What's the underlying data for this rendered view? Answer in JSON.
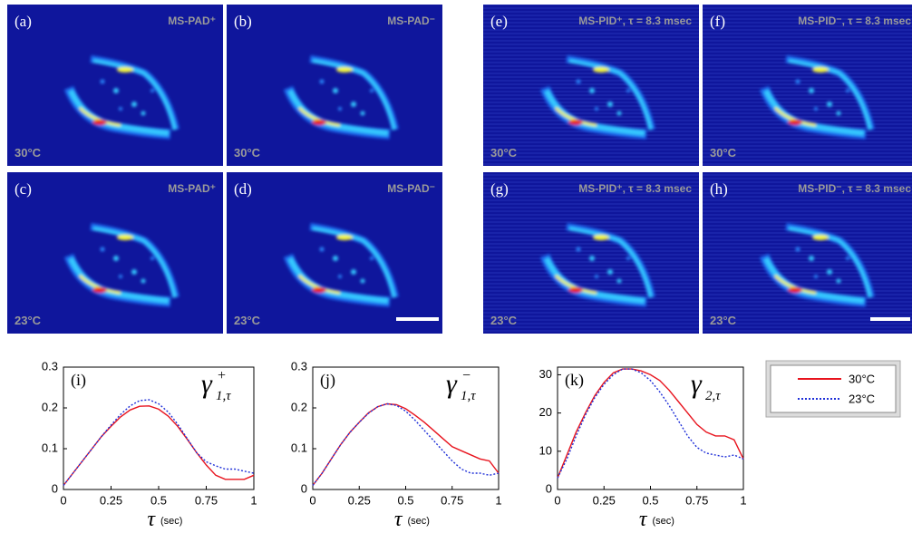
{
  "panels": [
    {
      "label": "(a)",
      "title": "MS-PAD⁺",
      "temperature": "30°C"
    },
    {
      "label": "(b)",
      "title": "MS-PAD⁻",
      "temperature": "30°C"
    },
    {
      "label": "(c)",
      "title": "MS-PAD⁺",
      "temperature": "23°C"
    },
    {
      "label": "(d)",
      "title": "MS-PAD⁻",
      "temperature": "23°C"
    },
    {
      "label": "(e)",
      "title": "MS-PID⁺, τ = 8.3 msec",
      "temperature": "30°C"
    },
    {
      "label": "(f)",
      "title": "MS-PID⁻, τ = 8.3 msec",
      "temperature": "30°C"
    },
    {
      "label": "(g)",
      "title": "MS-PID⁺, τ = 8.3 msec",
      "temperature": "23°C"
    },
    {
      "label": "(h)",
      "title": "MS-PID⁻, τ = 8.3 msec",
      "temperature": "23°C"
    }
  ],
  "legend": {
    "entries": [
      {
        "name": "30°C",
        "color": "#e8141e",
        "dotted": false
      },
      {
        "name": "23°C",
        "color": "#1f2fd8",
        "dotted": true
      }
    ]
  },
  "chart_data": [
    {
      "type": "line",
      "panel_label": "(i)",
      "symbol": "γ",
      "subscript": "1,τ",
      "superscript": "+",
      "x_label": "τ",
      "x_unit": "(sec)",
      "x": [
        0,
        0.05,
        0.1,
        0.15,
        0.2,
        0.25,
        0.3,
        0.35,
        0.4,
        0.45,
        0.5,
        0.55,
        0.6,
        0.65,
        0.7,
        0.75,
        0.8,
        0.85,
        0.9,
        0.95,
        1
      ],
      "xlim": [
        0,
        1
      ],
      "xticks": [
        0,
        0.25,
        0.5,
        0.75,
        1
      ],
      "ylim": [
        0,
        0.3
      ],
      "yticks": [
        0,
        0.1,
        0.2,
        0.3
      ],
      "series": [
        {
          "color": "#e8141e",
          "dotted": false,
          "values": [
            0.01,
            0.04,
            0.07,
            0.1,
            0.13,
            0.155,
            0.178,
            0.195,
            0.204,
            0.205,
            0.197,
            0.18,
            0.155,
            0.123,
            0.09,
            0.06,
            0.035,
            0.025,
            0.025,
            0.025,
            0.035
          ]
        },
        {
          "color": "#1f2fd8",
          "dotted": true,
          "values": [
            0.01,
            0.04,
            0.07,
            0.1,
            0.13,
            0.158,
            0.184,
            0.205,
            0.218,
            0.22,
            0.21,
            0.19,
            0.16,
            0.125,
            0.09,
            0.068,
            0.058,
            0.05,
            0.05,
            0.045,
            0.04
          ]
        }
      ]
    },
    {
      "type": "line",
      "panel_label": "(j)",
      "symbol": "γ",
      "subscript": "1,τ",
      "superscript": "−",
      "x_label": "τ",
      "x_unit": "(sec)",
      "x": [
        0,
        0.05,
        0.1,
        0.15,
        0.2,
        0.25,
        0.3,
        0.35,
        0.4,
        0.45,
        0.5,
        0.55,
        0.6,
        0.65,
        0.7,
        0.75,
        0.8,
        0.85,
        0.9,
        0.95,
        1
      ],
      "xlim": [
        0,
        1
      ],
      "xticks": [
        0,
        0.25,
        0.5,
        0.75,
        1
      ],
      "ylim": [
        0,
        0.3
      ],
      "yticks": [
        0,
        0.1,
        0.2,
        0.3
      ],
      "series": [
        {
          "color": "#e8141e",
          "dotted": false,
          "values": [
            0.01,
            0.04,
            0.075,
            0.11,
            0.14,
            0.165,
            0.188,
            0.203,
            0.21,
            0.208,
            0.198,
            0.182,
            0.165,
            0.145,
            0.125,
            0.105,
            0.095,
            0.085,
            0.075,
            0.07,
            0.04
          ]
        },
        {
          "color": "#1f2fd8",
          "dotted": true,
          "values": [
            0.01,
            0.04,
            0.075,
            0.11,
            0.14,
            0.165,
            0.187,
            0.203,
            0.21,
            0.206,
            0.192,
            0.17,
            0.145,
            0.12,
            0.095,
            0.07,
            0.05,
            0.04,
            0.04,
            0.035,
            0.04
          ]
        }
      ]
    },
    {
      "type": "line",
      "panel_label": "(k)",
      "symbol": "γ",
      "subscript": "2,τ",
      "x_label": "τ",
      "x_unit": "(sec)",
      "x": [
        0,
        0.05,
        0.1,
        0.15,
        0.2,
        0.25,
        0.3,
        0.35,
        0.4,
        0.45,
        0.5,
        0.55,
        0.6,
        0.65,
        0.7,
        0.75,
        0.8,
        0.85,
        0.9,
        0.95,
        1
      ],
      "xlim": [
        0,
        1
      ],
      "xticks": [
        0,
        0.25,
        0.5,
        0.75,
        1
      ],
      "ylim": [
        0,
        32
      ],
      "yticks": [
        0,
        10,
        20,
        30
      ],
      "series": [
        {
          "color": "#e8141e",
          "dotted": false,
          "values": [
            3,
            9,
            15,
            20,
            24.5,
            28,
            30.5,
            31.5,
            31.5,
            31,
            30,
            28.5,
            26,
            23,
            20,
            17,
            15,
            14,
            14,
            13,
            8
          ]
        },
        {
          "color": "#1f2fd8",
          "dotted": true,
          "values": [
            3,
            8,
            14,
            19.5,
            24,
            27.5,
            30,
            31.5,
            31.5,
            30.5,
            28.5,
            25.5,
            22,
            18,
            14,
            11,
            9.5,
            9,
            8.5,
            9,
            8
          ]
        }
      ]
    }
  ]
}
